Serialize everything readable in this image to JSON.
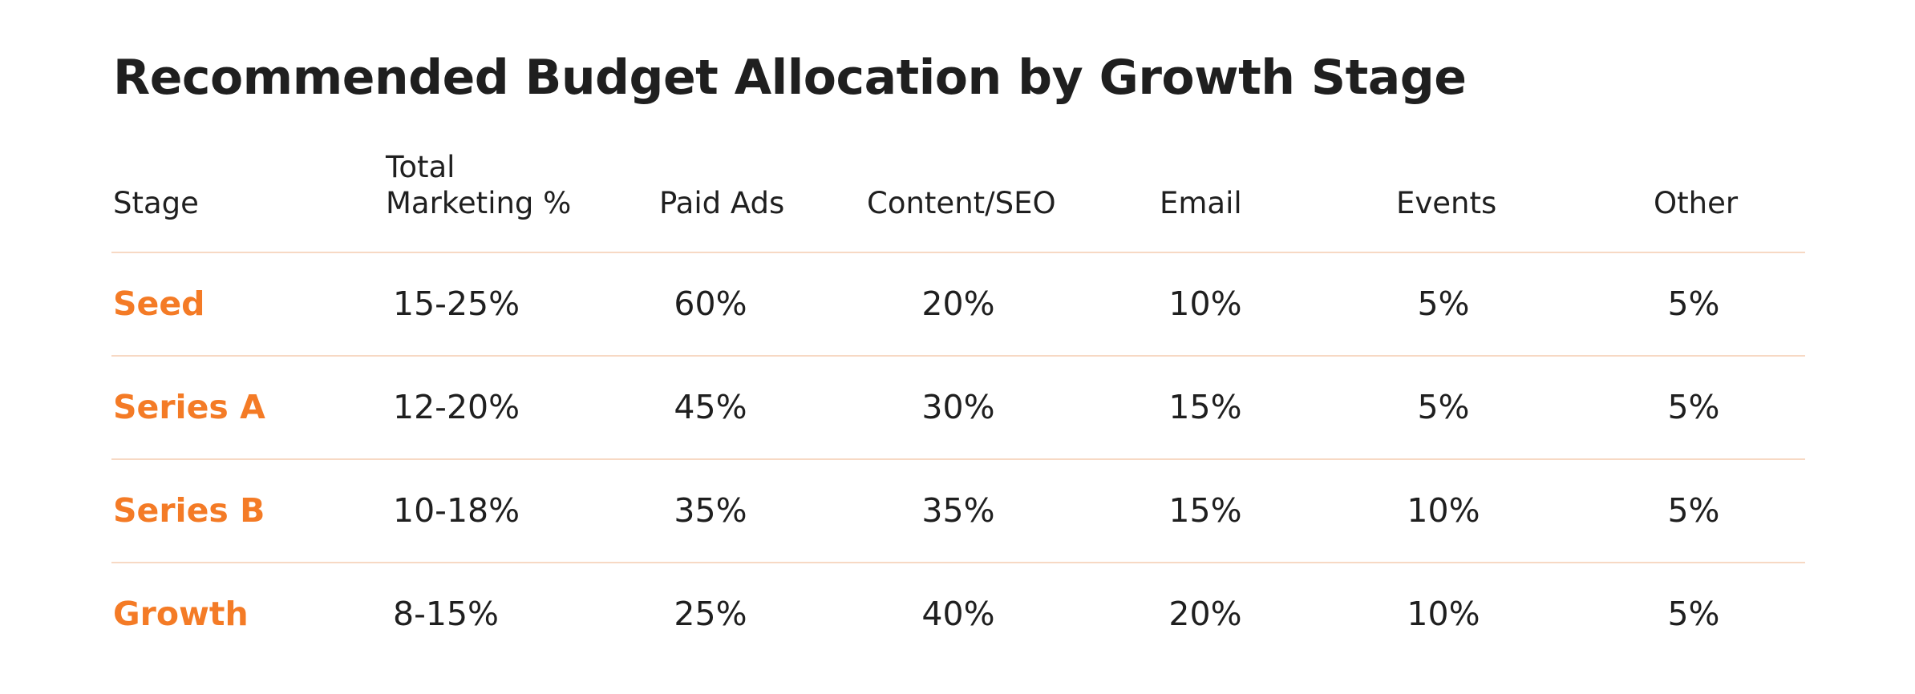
{
  "title": "Recommended Budget Allocation by Growth Stage",
  "colors": {
    "accent": "#f47b26",
    "divider": "#f7d9c4",
    "text": "#1f1f1f"
  },
  "table": {
    "headers": {
      "stage": "Stage",
      "total_line1": "Total",
      "total_line2": "Marketing %",
      "paid_ads": "Paid Ads",
      "content_seo": "Content/SEO",
      "email": "Email",
      "events": "Events",
      "other": "Other"
    },
    "rows": [
      {
        "stage": "Seed",
        "total": "15-25%",
        "paid_ads": "60%",
        "content_seo": "20%",
        "email": "10%",
        "events": "5%",
        "other": "5%"
      },
      {
        "stage": "Series A",
        "total": "12-20%",
        "paid_ads": "45%",
        "content_seo": "30%",
        "email": "15%",
        "events": "5%",
        "other": "5%"
      },
      {
        "stage": "Series B",
        "total": "10-18%",
        "paid_ads": "35%",
        "content_seo": "35%",
        "email": "15%",
        "events": "10%",
        "other": "5%"
      },
      {
        "stage": "Growth",
        "total": "8-15%",
        "paid_ads": "25%",
        "content_seo": "40%",
        "email": "20%",
        "events": "10%",
        "other": "5%"
      }
    ]
  }
}
